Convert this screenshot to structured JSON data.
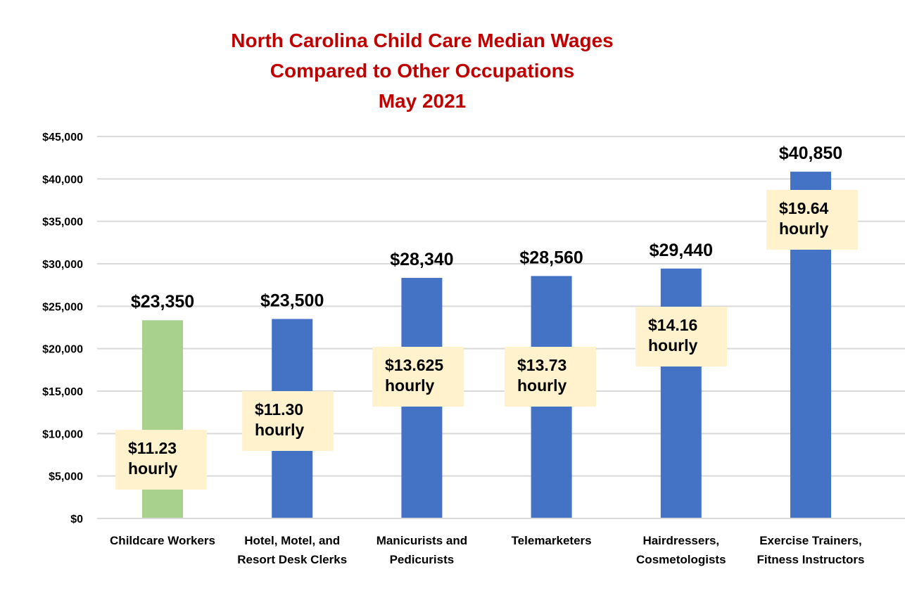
{
  "chart_data": {
    "type": "bar",
    "title": [
      "North Carolina Child Care Median Wages",
      "Compared to Other Occupations",
      "May 2021"
    ],
    "categories": [
      [
        "Childcare Workers"
      ],
      [
        "Hotel, Motel, and",
        "Resort Desk Clerks"
      ],
      [
        "Manicurists and",
        "Pedicurists"
      ],
      [
        "Telemarketers"
      ],
      [
        "Hairdressers,",
        "Cosmetologists"
      ],
      [
        "Exercise Trainers,",
        "Fitness Instructors"
      ]
    ],
    "values": [
      23350,
      23500,
      28340,
      28560,
      29440,
      40850
    ],
    "data_labels": [
      "$23,350",
      "$23,500",
      "$28,340",
      "$28,560",
      "$29,440",
      "$40,850"
    ],
    "hourly_labels": [
      [
        "$11.23",
        "hourly"
      ],
      [
        "$11.30",
        "hourly"
      ],
      [
        "$13.625",
        "hourly"
      ],
      [
        "$13.73",
        "hourly"
      ],
      [
        "$14.16",
        "hourly"
      ],
      [
        "$19.64",
        "hourly"
      ]
    ],
    "ylim": [
      0,
      45000
    ],
    "yticks": [
      0,
      5000,
      10000,
      15000,
      20000,
      25000,
      30000,
      35000,
      40000,
      45000
    ],
    "ytick_labels": [
      "$0",
      "$5,000",
      "$10,000",
      "$15,000",
      "$20,000",
      "$25,000",
      "$30,000",
      "$35,000",
      "$40,000",
      "$45,000"
    ],
    "grid": true,
    "xlabel": "",
    "ylabel": "",
    "colors": {
      "title": "#C00000",
      "highlight_bar": "#A9D18E",
      "bar": "#4472C4",
      "annotation_box": "#FFF2CC",
      "grid": "#D9D9D9"
    },
    "highlight_index": 0
  }
}
